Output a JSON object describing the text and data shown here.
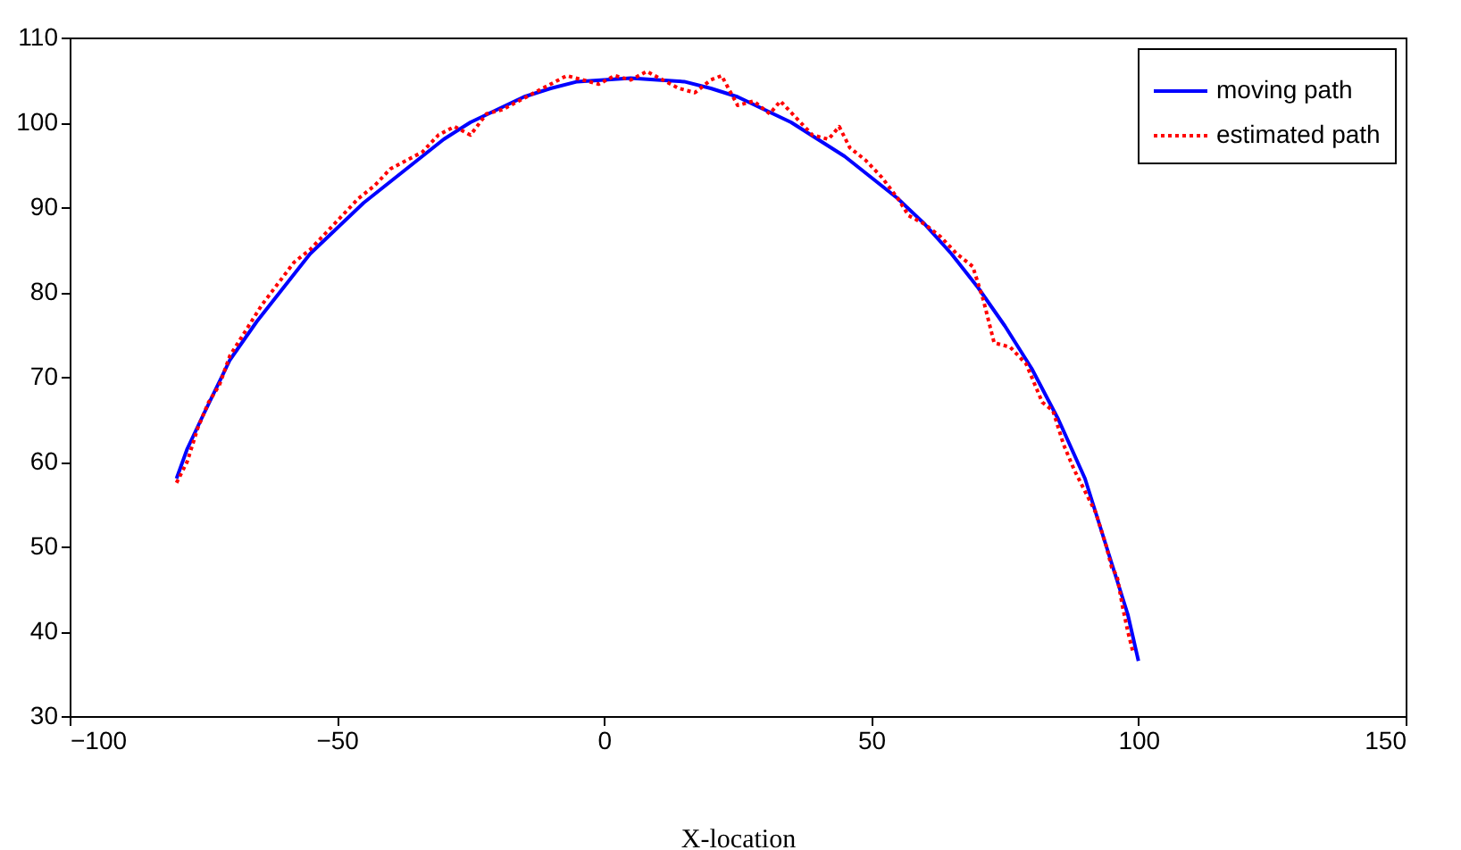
{
  "chart_data": {
    "type": "line",
    "xlabel": "X-location",
    "xlim": [
      -100,
      150
    ],
    "xticks": [
      -100,
      -50,
      0,
      50,
      100,
      150
    ],
    "ylim": [
      30,
      110
    ],
    "yticks": [
      30,
      40,
      50,
      60,
      70,
      80,
      90,
      100,
      110
    ],
    "grid": false,
    "legend": "top right",
    "marker": "none",
    "series": [
      {
        "name": "moving path",
        "color": "#0000ff",
        "line_style": "solid",
        "x": [
          -80,
          -78,
          -75,
          -70,
          -65,
          -60,
          -55,
          -50,
          -45,
          -40,
          -35,
          -30,
          -25,
          -20,
          -15,
          -10,
          -5,
          0,
          5,
          10,
          15,
          20,
          25,
          30,
          35,
          40,
          45,
          50,
          55,
          60,
          65,
          70,
          75,
          80,
          85,
          90,
          95,
          98,
          100
        ],
        "values": [
          58,
          61.5,
          65.5,
          72,
          76.5,
          80.5,
          84.5,
          87.5,
          90.5,
          93,
          95.5,
          98,
          100,
          101.5,
          103,
          104,
          104.8,
          105,
          105.2,
          105,
          104.8,
          104,
          103,
          101.5,
          100,
          98,
          96,
          93.5,
          91,
          88,
          84.5,
          80.5,
          76,
          71,
          65,
          58,
          48,
          42,
          36.5
        ]
      },
      {
        "name": "estimated path",
        "color": "#ff0000",
        "line_style": "dotted",
        "x": [
          -80,
          -78,
          -76,
          -74,
          -72,
          -70,
          -67,
          -64,
          -61,
          -58,
          -55,
          -52,
          -49,
          -46,
          -43,
          -40,
          -37,
          -34,
          -31,
          -28,
          -25,
          -22,
          -19,
          -16,
          -13,
          -10,
          -7,
          -4,
          -1,
          2,
          5,
          8,
          11,
          14,
          17,
          20,
          22,
          25,
          28,
          31,
          33,
          36,
          39,
          42,
          44,
          46,
          49,
          52,
          55,
          57,
          60,
          63,
          66,
          69,
          71,
          73,
          76,
          79,
          82,
          84,
          86,
          88,
          90,
          92,
          94,
          95,
          96,
          97,
          98,
          99
        ],
        "values": [
          57.5,
          60,
          64,
          67,
          69,
          72.5,
          75.5,
          78.5,
          81,
          83.5,
          85,
          87,
          89,
          91,
          92.5,
          94.5,
          95.5,
          96.5,
          98.5,
          99.5,
          98.5,
          101,
          101.5,
          102.5,
          103.5,
          104.5,
          105.5,
          105,
          104.5,
          105.5,
          105,
          106,
          105,
          104,
          103.5,
          105,
          105.5,
          102,
          102.5,
          101,
          102.5,
          100.5,
          98.5,
          98,
          99.5,
          97,
          95.5,
          93.5,
          91,
          89,
          88,
          86.5,
          84.5,
          83,
          79,
          74,
          73.5,
          71.5,
          67,
          66,
          62,
          59,
          56.5,
          54,
          50,
          47.5,
          46.5,
          43,
          40,
          37.5
        ]
      }
    ]
  }
}
